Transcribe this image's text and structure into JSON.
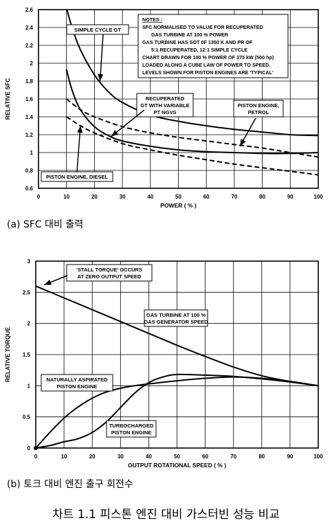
{
  "charts": {
    "a": {
      "caption": "(a) SFC 대비 출력",
      "chart_data": {
        "type": "line",
        "xlabel": "POWER ( % )",
        "ylabel": "RELATIVE SFC",
        "xlim": [
          0,
          100
        ],
        "ylim": [
          0.6,
          2.6
        ],
        "x_ticks": [
          0,
          10,
          20,
          30,
          40,
          50,
          60,
          70,
          80,
          90,
          100
        ],
        "y_ticks": [
          0.6,
          0.8,
          1,
          1.2,
          1.4,
          1.6,
          1.8,
          2,
          2.2,
          2.4,
          2.6
        ],
        "y_tick_labels": [
          "0.6",
          "0.8",
          "1",
          "1.2",
          "1.4",
          "1.6",
          "1.8",
          "2",
          "2.2",
          "2.4",
          "2.6"
        ],
        "grid": true,
        "series": [
          {
            "name": "SIMPLE CYCLE GT",
            "style": "solid",
            "x": [
              10,
              12,
              15,
              20,
              25,
              30,
              40,
              50,
              60,
              70,
              80,
              90,
              100
            ],
            "y": [
              2.62,
              2.4,
              2.15,
              1.87,
              1.68,
              1.56,
              1.42,
              1.35,
              1.3,
              1.26,
              1.23,
              1.2,
              1.19
            ]
          },
          {
            "name": "RECUPERATED GT WITH VARIABLE PT NGVS",
            "style": "solid",
            "x": [
              10,
              12,
              15,
              20,
              25,
              30,
              40,
              50,
              60,
              70,
              80,
              90,
              100
            ],
            "y": [
              1.93,
              1.7,
              1.48,
              1.29,
              1.19,
              1.13,
              1.07,
              1.03,
              1.01,
              1.0,
              0.99,
              0.99,
              1.0
            ]
          },
          {
            "name": "PISTON ENGINE, PETROL",
            "style": "dashed",
            "x": [
              10,
              15,
              20,
              30,
              40,
              50,
              60,
              70,
              80,
              90,
              100
            ],
            "y": [
              1.6,
              1.48,
              1.4,
              1.29,
              1.22,
              1.17,
              1.13,
              1.09,
              1.05,
              1.0,
              0.95
            ]
          },
          {
            "name": "PISTON ENGINE, DIESEL",
            "style": "dashed",
            "x": [
              10,
              15,
              20,
              30,
              40,
              50,
              60,
              70,
              80,
              90,
              100
            ],
            "y": [
              1.4,
              1.3,
              1.22,
              1.1,
              1.03,
              0.97,
              0.92,
              0.87,
              0.83,
              0.79,
              0.75
            ]
          }
        ],
        "labels": [
          {
            "id": "simple",
            "text": [
              "SIMPLE CYCLE GT"
            ]
          },
          {
            "id": "recup",
            "text": [
              "RECUPERATED",
              "GT WITH VARIABLE",
              "PT NGVS"
            ]
          },
          {
            "id": "petrol",
            "text": [
              "PISTON ENGINE,",
              "PETROL"
            ]
          },
          {
            "id": "diesel",
            "text": [
              "PISTON ENGINE, DIESEL"
            ]
          }
        ],
        "notes": [
          "NOTES :",
          "SFC NORMALISED TO VALUE FOR RECUPERATED",
          "GAS TURBINE AT 100 % POWER",
          "GAS TURBINE HAS SOT 0F 1350 K AND PR OF",
          "5:1 RECUPERATED, 12:1 SIMPLE CYCLE",
          "CHART DRAWN FOR 100 % POWER OF 375 kW (500 hp)",
          "LOADED ALONG A CUBE LAW OF POWER TO SPEED.",
          "LEVELS SHOWN FOR PISTON ENGINES ARE 'TYPICAL'"
        ]
      }
    },
    "b": {
      "caption": "(b) 토크 대비 엔진 출구 회전수",
      "chart_data": {
        "type": "line",
        "xlabel": "OUTPUT ROTATIONAL SPEED ( % )",
        "ylabel": "RELATIVE TORQUE",
        "xlim": [
          0,
          100
        ],
        "ylim": [
          0,
          3
        ],
        "x_ticks": [
          0,
          10,
          20,
          30,
          40,
          50,
          60,
          70,
          80,
          90,
          100
        ],
        "y_ticks": [
          0,
          0.5,
          1,
          1.5,
          2,
          2.5,
          3
        ],
        "y_tick_labels": [
          "0",
          "0.5",
          "1",
          "1.5",
          "2",
          "2.5",
          "3"
        ],
        "grid": true,
        "series": [
          {
            "name": "GAS TURBINE AT 100 % GAS GENERATOR SPEED",
            "style": "solid",
            "x": [
              0,
              10,
              20,
              30,
              40,
              50,
              60,
              70,
              80,
              90,
              100
            ],
            "y": [
              2.6,
              2.41,
              2.22,
              2.03,
              1.84,
              1.65,
              1.47,
              1.3,
              1.16,
              1.07,
              1.0
            ]
          },
          {
            "name": "NATURALLY ASPIRATED PISTON ENGINE",
            "style": "solid",
            "x": [
              0,
              5,
              10,
              15,
              20,
              25,
              30,
              35,
              40,
              50,
              60,
              70,
              80,
              90,
              100
            ],
            "y": [
              0,
              0.25,
              0.48,
              0.66,
              0.8,
              0.9,
              0.96,
              1.0,
              1.03,
              1.08,
              1.12,
              1.14,
              1.12,
              1.07,
              1.0
            ]
          },
          {
            "name": "TURBOCHARGED PISTON ENGINE",
            "style": "solid",
            "x": [
              0,
              5,
              10,
              15,
              20,
              25,
              30,
              35,
              40,
              45,
              50,
              60,
              70,
              80,
              90,
              100
            ],
            "y": [
              0,
              0.04,
              0.1,
              0.15,
              0.25,
              0.42,
              0.65,
              0.88,
              1.05,
              1.14,
              1.18,
              1.17,
              1.15,
              1.11,
              1.06,
              1.0
            ]
          }
        ],
        "labels": [
          {
            "id": "stall",
            "text": [
              "'STALL TORQUE' OCCURS",
              "AT ZERO OUTPUT SPEED"
            ]
          },
          {
            "id": "gt",
            "text": [
              "GAS TURBINE AT 100 %",
              "GAS GENERATOR SPEED"
            ]
          },
          {
            "id": "na",
            "text": [
              "NATURALLY ASPIRATED",
              "PISTON ENGINE"
            ]
          },
          {
            "id": "turbo",
            "text": [
              "TURBOCHARGED",
              "PISTON ENGINE"
            ]
          }
        ]
      }
    }
  },
  "figure_caption": "차트 1.1 피스톤 엔진 대비 가스터빈 성능 비교"
}
